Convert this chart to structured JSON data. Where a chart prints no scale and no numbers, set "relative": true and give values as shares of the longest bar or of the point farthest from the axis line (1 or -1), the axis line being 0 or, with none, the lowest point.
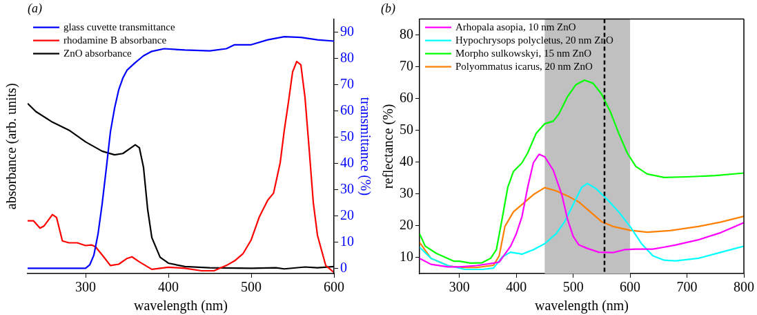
{
  "chart_data": [
    {
      "type": "line",
      "title": "(a)",
      "xlabel": "wavelength (nm)",
      "ylabel": "absorbance (arb. units)",
      "relative": true,
      "xlim": [
        230,
        600
      ],
      "xticks": [
        300,
        400,
        500,
        600
      ],
      "legend": "top left",
      "grid": false,
      "marker": "none",
      "line_style": "solid",
      "series": [
        {
          "name": "rhodamine B absorbance",
          "color": "#ff0000",
          "x": [
            230,
            237,
            245,
            250,
            260,
            265,
            272,
            280,
            290,
            300,
            307,
            312,
            320,
            330,
            340,
            350,
            356,
            365,
            380,
            400,
            420,
            440,
            455,
            470,
            480,
            490,
            500,
            510,
            520,
            527,
            535,
            540,
            545,
            550,
            555,
            560,
            565,
            570,
            575,
            580,
            590,
            600
          ],
          "values": [
            0.249,
            0.249,
            0.214,
            0.225,
            0.278,
            0.264,
            0.154,
            0.145,
            0.145,
            0.132,
            0.135,
            0.126,
            0.088,
            0.038,
            0.044,
            0.071,
            0.079,
            0.055,
            0.02,
            0.03,
            0.025,
            0.013,
            0.013,
            0.038,
            0.06,
            0.093,
            0.159,
            0.269,
            0.346,
            0.379,
            0.522,
            0.676,
            0.808,
            0.951,
            1,
            0.984,
            0.83,
            0.588,
            0.335,
            0.181,
            0.038,
            0.005
          ]
        },
        {
          "name": "ZnO absorbance",
          "color": "#000000",
          "x": [
            230,
            240,
            260,
            280,
            300,
            320,
            335,
            345,
            355,
            360,
            365,
            370,
            375,
            380,
            390,
            400,
            420,
            450,
            500,
            530,
            540,
            565,
            580,
            600
          ],
          "values": [
            0.802,
            0.764,
            0.714,
            0.676,
            0.621,
            0.577,
            0.56,
            0.566,
            0.593,
            0.607,
            0.593,
            0.5,
            0.302,
            0.17,
            0.077,
            0.049,
            0.033,
            0.027,
            0.025,
            0.027,
            0.022,
            0.031,
            0.027,
            0.033
          ]
        }
      ]
    },
    {
      "type": "line",
      "y2label": "transmittance (%)",
      "xlim": [
        230,
        600
      ],
      "y2lim": [
        -2,
        95
      ],
      "y2ticks": [
        0,
        10,
        20,
        30,
        40,
        50,
        60,
        70,
        80,
        90
      ],
      "tick_labels": "y",
      "legend": "top left",
      "grid": false,
      "marker": "none",
      "line_style": "solid",
      "series": [
        {
          "name": "glass cuvette transmittance",
          "color": "#0000ff",
          "axis": "y2",
          "x": [
            230,
            300,
            305,
            310,
            315,
            320,
            325,
            330,
            335,
            340,
            345,
            350,
            360,
            370,
            380,
            395,
            420,
            450,
            470,
            480,
            500,
            520,
            540,
            560,
            580,
            600
          ],
          "values": [
            0,
            0,
            1.3,
            5,
            13,
            24.5,
            38,
            52,
            61,
            68,
            72.5,
            75.5,
            78.4,
            81,
            82.7,
            83.7,
            83.2,
            82.9,
            83.7,
            85.2,
            85.2,
            87.1,
            88.3,
            88,
            87.1,
            86.6
          ]
        }
      ]
    },
    {
      "type": "line",
      "title": "(b)",
      "xlabel": "wavelength (nm)",
      "ylabel": "reflectance (%)",
      "xlim": [
        230,
        800
      ],
      "xticks": [
        300,
        400,
        500,
        600,
        700,
        800
      ],
      "ylim": [
        5,
        85
      ],
      "yticks": [
        10,
        20,
        30,
        40,
        50,
        60,
        70,
        80
      ],
      "legend": "top left",
      "grid": false,
      "marker": "none",
      "line_style": "solid",
      "bands": [
        {
          "axis": "x",
          "from": 450,
          "to": 600,
          "color": "#c0c0c0"
        }
      ],
      "ref_lines": [
        {
          "axis": "x",
          "value": 555,
          "color": "#000000",
          "line_style": "dashed"
        }
      ],
      "series": [
        {
          "name": "Arhopala asopia, 10 nm ZnO",
          "color": "#ff00ff",
          "x": [
            230,
            250,
            280,
            300,
            330,
            360,
            370,
            390,
            400,
            410,
            420,
            430,
            440,
            450,
            465,
            480,
            490,
            500,
            510,
            525,
            545,
            570,
            590,
            610,
            640,
            660,
            680,
            720,
            760,
            800
          ],
          "values": [
            9.8,
            7.9,
            7.1,
            7.1,
            7.5,
            8.3,
            8.6,
            13.6,
            17.5,
            22.9,
            32.1,
            39.8,
            42.5,
            41.7,
            37.5,
            29.8,
            22.1,
            16.7,
            14,
            12.9,
            11.7,
            11.6,
            12.5,
            12.7,
            12.7,
            13.3,
            14,
            15.6,
            17.9,
            21
          ]
        },
        {
          "name": "Hypochrysops polycletus, 20 nm ZnO",
          "color": "#00ffff",
          "x": [
            230,
            250,
            280,
            310,
            340,
            360,
            375,
            390,
            410,
            430,
            450,
            470,
            485,
            500,
            515,
            525,
            540,
            560,
            580,
            600,
            620,
            640,
            660,
            680,
            720,
            760,
            800
          ],
          "values": [
            13.3,
            9.8,
            7.5,
            6.3,
            6.3,
            6.7,
            10.2,
            11.7,
            11.1,
            12.5,
            14.4,
            17.5,
            21.3,
            26.7,
            32.1,
            33.3,
            31.7,
            28.3,
            24.4,
            19.8,
            14.4,
            10.6,
            9.2,
            9,
            9.8,
            11.7,
            13.6
          ]
        },
        {
          "name": "Morpho sulkowskyi, 15 nm ZnO",
          "color": "#00ff00",
          "x": [
            230,
            240,
            260,
            290,
            300,
            320,
            340,
            355,
            365,
            375,
            385,
            395,
            410,
            420,
            435,
            450,
            465,
            475,
            490,
            505,
            520,
            535,
            550,
            565,
            580,
            595,
            610,
            630,
            660,
            700,
            750,
            800
          ],
          "values": [
            17.5,
            13.6,
            11.3,
            8.9,
            8.9,
            8.3,
            8.4,
            9.8,
            12.5,
            22.1,
            32.1,
            37.1,
            39.8,
            42.9,
            49.1,
            52.1,
            52.9,
            55.2,
            60.6,
            64.4,
            65.8,
            64.8,
            61.4,
            56,
            49.1,
            42.9,
            38.7,
            36.3,
            35.2,
            35.4,
            35.8,
            36.6
          ]
        },
        {
          "name": "Polyommatus icarus, 20 nm ZnO",
          "color": "#ff7f00",
          "x": [
            230,
            250,
            280,
            300,
            330,
            360,
            370,
            380,
            395,
            410,
            430,
            450,
            470,
            490,
            510,
            530,
            550,
            570,
            600,
            630,
            670,
            720,
            760,
            800
          ],
          "values": [
            14.8,
            9.8,
            7.5,
            6.9,
            6.9,
            7.6,
            10.6,
            19.8,
            24.4,
            26.7,
            29.8,
            32,
            31,
            29.4,
            27.5,
            24.4,
            21.3,
            19.8,
            18.6,
            18,
            18.5,
            19.8,
            21.2,
            23
          ]
        }
      ]
    }
  ]
}
